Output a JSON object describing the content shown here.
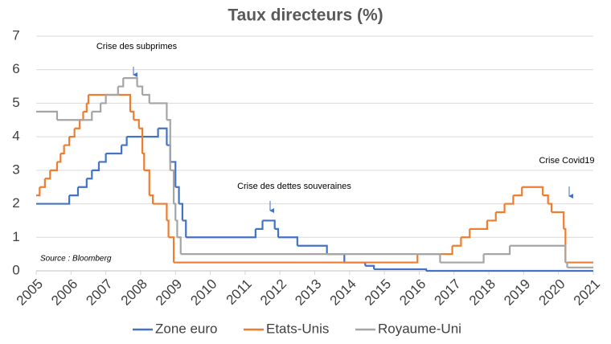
{
  "chart_data": {
    "type": "step-line",
    "title": "Taux directeurs (%)",
    "xlim": [
      2005,
      2021
    ],
    "xticks": [
      2005,
      2006,
      2007,
      2008,
      2009,
      2010,
      2011,
      2012,
      2013,
      2014,
      2015,
      2016,
      2017,
      2018,
      2019,
      2020,
      2021
    ],
    "ylim": [
      0,
      7
    ],
    "yticks": [
      0,
      1,
      2,
      3,
      4,
      5,
      6,
      7
    ],
    "grid": true,
    "legend": "bottom",
    "annotations": [
      "Crise des subprimes",
      "Crise des dettes souveraines",
      "Crise Covid19"
    ],
    "source": "Source : Bloomberg",
    "series": [
      {
        "name": "Zone euro",
        "color": "#4472c4",
        "x": [
          2005,
          2005.95,
          2006.2,
          2006.45,
          2006.6,
          2006.8,
          2007.0,
          2007.45,
          2007.6,
          2008.5,
          2008.75,
          2008.85,
          2009.0,
          2009.1,
          2009.2,
          2009.3,
          2011.3,
          2011.5,
          2011.85,
          2011.95,
          2012.5,
          2013.35,
          2013.85,
          2014.45,
          2014.7,
          2016.2,
          2021
        ],
        "values": [
          2,
          2.25,
          2.5,
          2.75,
          3,
          3.25,
          3.5,
          3.75,
          4,
          4.25,
          3.75,
          3.25,
          2.5,
          2,
          1.5,
          1,
          1.25,
          1.5,
          1.25,
          1,
          0.75,
          0.5,
          0.25,
          0.15,
          0.05,
          0,
          0
        ]
      },
      {
        "name": "Etats-Unis",
        "color": "#ed7d31",
        "x": [
          2005,
          2005.1,
          2005.25,
          2005.4,
          2005.6,
          2005.7,
          2005.8,
          2005.95,
          2006.1,
          2006.25,
          2006.35,
          2006.45,
          2006.5,
          2007.7,
          2007.8,
          2007.95,
          2008.05,
          2008.1,
          2008.25,
          2008.35,
          2008.75,
          2008.8,
          2008.95,
          2015.95,
          2016.95,
          2017.2,
          2017.45,
          2017.95,
          2018.2,
          2018.45,
          2018.7,
          2018.95,
          2019.55,
          2019.7,
          2019.8,
          2020.15,
          2020.2,
          2021
        ],
        "values": [
          2.25,
          2.5,
          2.75,
          3,
          3.25,
          3.5,
          3.75,
          4,
          4.25,
          4.5,
          4.75,
          5,
          5.25,
          4.75,
          4.5,
          4.25,
          3.5,
          3,
          2.25,
          2,
          1.5,
          1,
          0.25,
          0.5,
          0.75,
          1,
          1.25,
          1.5,
          1.75,
          2,
          2.25,
          2.5,
          2.25,
          2,
          1.75,
          1.25,
          0.25,
          0.25
        ]
      },
      {
        "name": "Royaume-Uni",
        "color": "#a5a5a5",
        "x": [
          2005,
          2005.6,
          2006.6,
          2006.85,
          2007.0,
          2007.35,
          2007.5,
          2007.9,
          2008.05,
          2008.25,
          2008.75,
          2008.85,
          2008.95,
          2009.0,
          2009.05,
          2009.15,
          2016.6,
          2017.85,
          2018.6,
          2020.2,
          2020.25,
          2021
        ],
        "values": [
          4.75,
          4.5,
          4.75,
          5,
          5.25,
          5.5,
          5.75,
          5.5,
          5.25,
          5,
          4.5,
          3,
          2,
          1.5,
          1,
          0.5,
          0.25,
          0.5,
          0.75,
          0.25,
          0.1,
          0.1
        ]
      }
    ]
  }
}
